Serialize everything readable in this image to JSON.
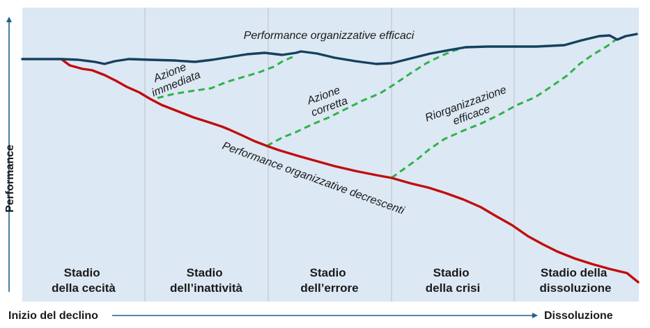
{
  "colors": {
    "panel_background": "#dce8f3",
    "divider": "#c6ced6",
    "axis": "#1e5f8a",
    "effective_curve": "#15405f",
    "declining_curve": "#c00d0d",
    "corrective_action": "#2fb24a"
  },
  "axes": {
    "y_label": "Performance",
    "x_start_label": "Inizio del declino",
    "x_end_label": "Dissoluzione"
  },
  "stages": [
    {
      "line1": "Stadio",
      "line2": "della cecità"
    },
    {
      "line1": "Stadio",
      "line2": "dell’inattività"
    },
    {
      "line1": "Stadio",
      "line2": "dell’errore"
    },
    {
      "line1": "Stadio",
      "line2": "della crisi"
    },
    {
      "line1": "Stadio della",
      "line2": "dissoluzione"
    }
  ],
  "curves": {
    "effective": "Performance organizzative efficaci",
    "declining": "Performance organizzative decrescenti"
  },
  "actions": [
    {
      "line1": "Azione",
      "line2": "immediata"
    },
    {
      "line1": "Azione",
      "line2": "corretta"
    },
    {
      "line1": "Riorganizzazione",
      "line2": "efficace"
    }
  ]
}
